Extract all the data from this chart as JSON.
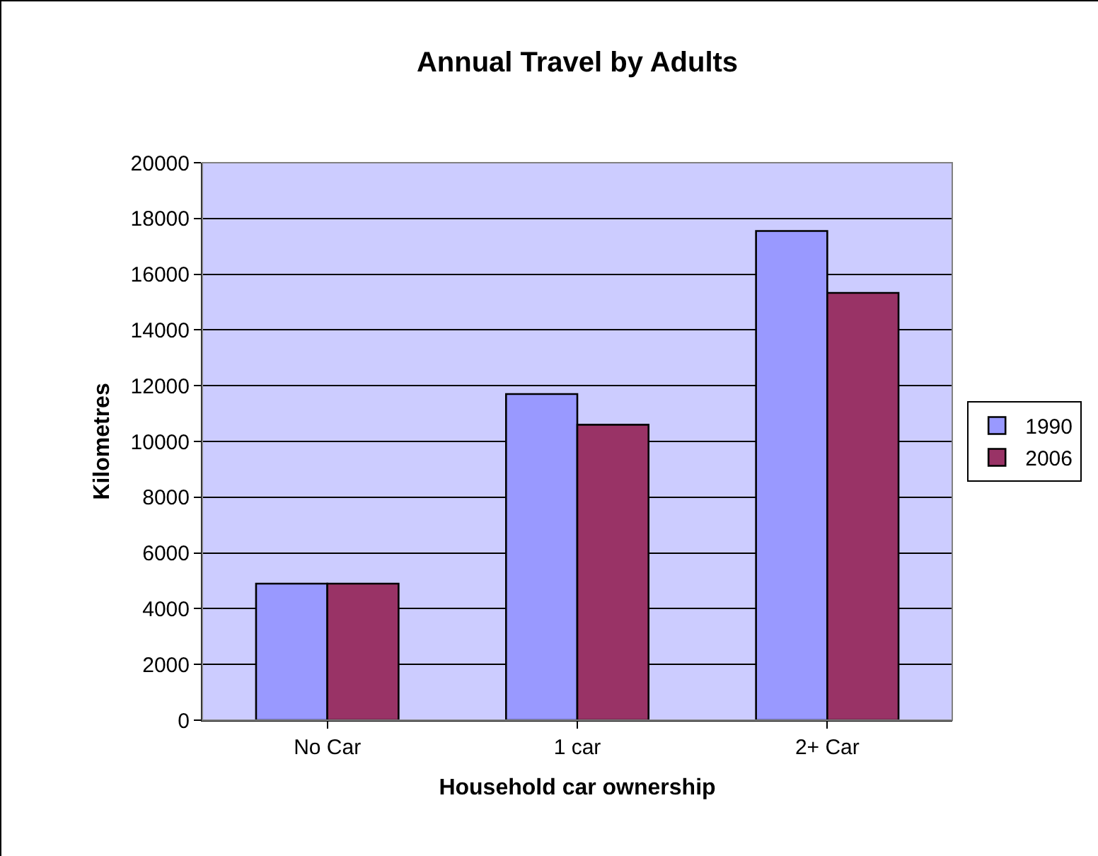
{
  "chart_data": {
    "type": "bar",
    "title": "Annual Travel by Adults",
    "xlabel": "Household car ownership",
    "ylabel": "Kilometres",
    "categories": [
      "No Car",
      "1 car",
      "2+ Car"
    ],
    "series": [
      {
        "name": "1990",
        "color": "#9999ff",
        "values": [
          4900,
          11700,
          17550
        ]
      },
      {
        "name": "2006",
        "color": "#993366",
        "values": [
          4900,
          10600,
          15330
        ]
      }
    ],
    "ylim": [
      0,
      20000
    ],
    "yticks": [
      0,
      2000,
      4000,
      6000,
      8000,
      10000,
      12000,
      14000,
      16000,
      18000,
      20000
    ],
    "grid": "y",
    "legend": "right"
  }
}
